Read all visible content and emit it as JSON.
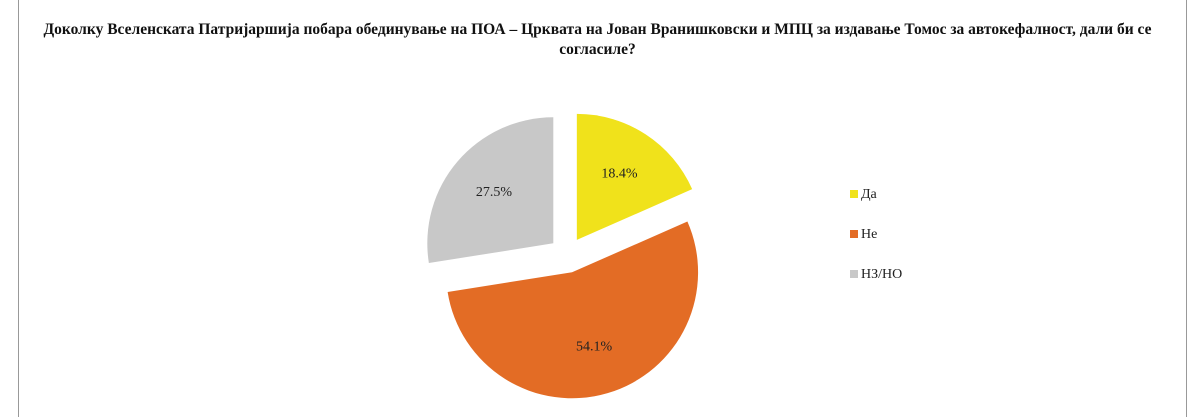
{
  "chart_data": {
    "type": "pie",
    "title": "Доколку Вселенската Патријаршија побара обединување на  ПОА – Црквата на Јован Вранишковски и МПЦ за издавање Томос за автокефалност, дали би се согласиле?",
    "categories": [
      "Да",
      "Не",
      "НЗ/НО"
    ],
    "values": [
      18.4,
      54.1,
      27.5
    ],
    "value_labels": [
      "18.4%",
      "54.1%",
      "27.5%"
    ],
    "colors": [
      "#f0e21b",
      "#e36c25",
      "#c8c8c8"
    ],
    "legend": "right"
  }
}
